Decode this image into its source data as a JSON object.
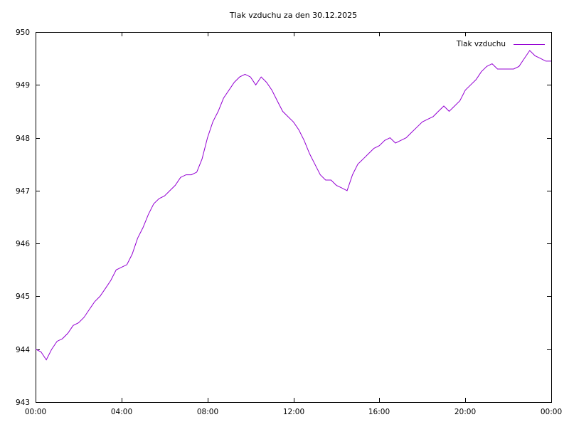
{
  "chart_data": {
    "type": "line",
    "title": "Tlak vzduchu za den 30.12.2025",
    "xlabel": "",
    "ylabel": "",
    "x_unit": "hours",
    "xlim": [
      0,
      24
    ],
    "ylim": [
      943,
      950
    ],
    "x_ticks": [
      0,
      4,
      8,
      12,
      16,
      20,
      24
    ],
    "x_tick_labels": [
      "00:00",
      "04:00",
      "08:00",
      "12:00",
      "16:00",
      "20:00",
      "00:00"
    ],
    "y_ticks": [
      943,
      944,
      945,
      946,
      947,
      948,
      949,
      950
    ],
    "grid": false,
    "legend_position": "top-right-inside",
    "line_color": "#9400d3",
    "axis_color": "#000000",
    "background_color": "#ffffff",
    "series": [
      {
        "name": "Tlak vzduchu",
        "x": [
          0,
          0.25,
          0.5,
          0.75,
          1,
          1.25,
          1.5,
          1.75,
          2,
          2.25,
          2.5,
          2.75,
          3,
          3.25,
          3.5,
          3.75,
          4,
          4.25,
          4.5,
          4.75,
          5,
          5.25,
          5.5,
          5.75,
          6,
          6.25,
          6.5,
          6.75,
          7,
          7.25,
          7.5,
          7.75,
          8,
          8.25,
          8.5,
          8.75,
          9,
          9.25,
          9.5,
          9.75,
          10,
          10.25,
          10.5,
          10.75,
          11,
          11.25,
          11.5,
          11.75,
          12,
          12.25,
          12.5,
          12.75,
          13,
          13.25,
          13.5,
          13.75,
          14,
          14.25,
          14.5,
          14.75,
          15,
          15.25,
          15.5,
          15.75,
          16,
          16.25,
          16.5,
          16.75,
          17,
          17.25,
          17.5,
          17.75,
          18,
          18.25,
          18.5,
          18.75,
          19,
          19.25,
          19.5,
          19.75,
          20,
          20.25,
          20.5,
          20.75,
          21,
          21.25,
          21.5,
          21.75,
          22,
          22.25,
          22.5,
          22.75,
          23,
          23.25,
          23.5,
          23.75,
          24
        ],
        "y": [
          944.0,
          943.95,
          943.8,
          944.0,
          944.15,
          944.2,
          944.3,
          944.45,
          944.5,
          944.6,
          944.75,
          944.9,
          945.0,
          945.15,
          945.3,
          945.5,
          945.55,
          945.6,
          945.8,
          946.1,
          946.3,
          946.55,
          946.75,
          946.85,
          946.9,
          947.0,
          947.1,
          947.25,
          947.3,
          947.3,
          947.35,
          947.6,
          948.0,
          948.3,
          948.5,
          948.75,
          948.9,
          949.05,
          949.15,
          949.2,
          949.15,
          949.0,
          949.15,
          949.05,
          948.9,
          948.7,
          948.5,
          948.4,
          948.3,
          948.15,
          947.95,
          947.7,
          947.5,
          947.3,
          947.2,
          947.2,
          947.1,
          947.05,
          947.0,
          947.3,
          947.5,
          947.6,
          947.7,
          947.8,
          947.85,
          947.95,
          948.0,
          947.9,
          947.95,
          948.0,
          948.1,
          948.2,
          948.3,
          948.35,
          948.4,
          948.5,
          948.6,
          948.5,
          948.6,
          948.7,
          948.9,
          949.0,
          949.1,
          949.25,
          949.35,
          949.4,
          949.3,
          949.3,
          949.3,
          949.3,
          949.35,
          949.5,
          949.65,
          949.55,
          949.5,
          949.45,
          949.45
        ]
      }
    ]
  }
}
